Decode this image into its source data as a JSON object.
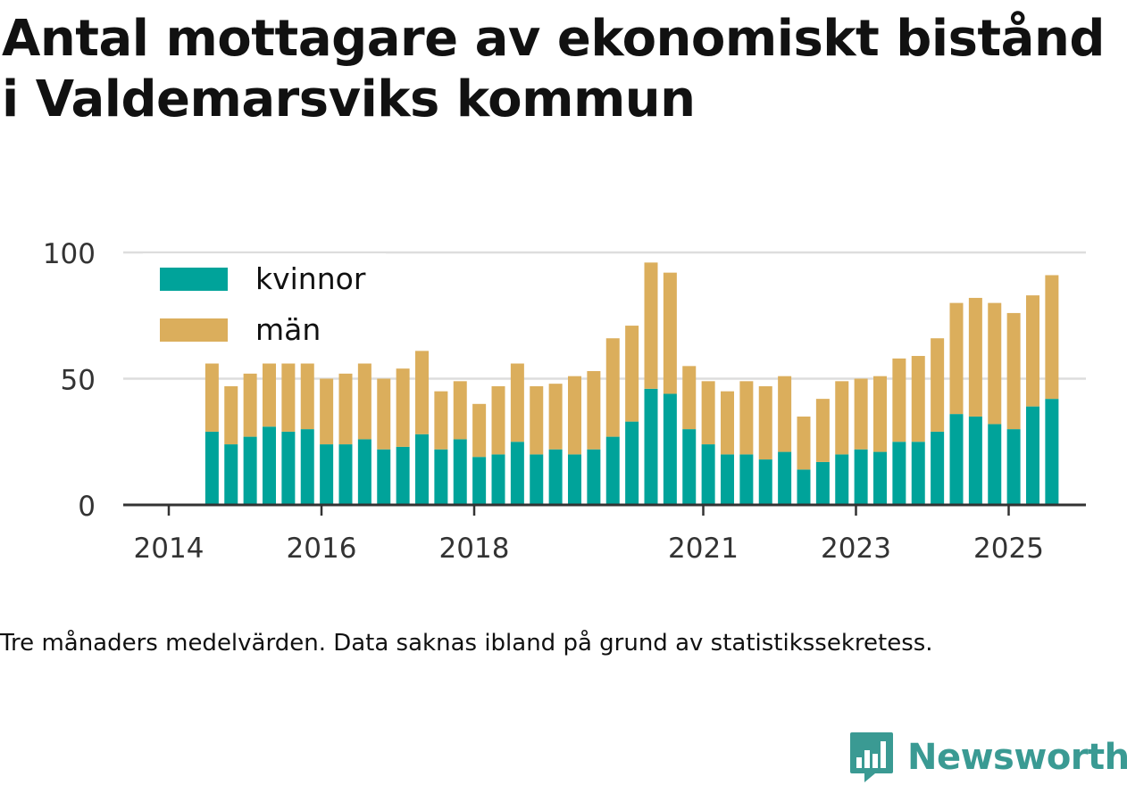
{
  "title": "Antal mottagare av ekonomiskt bistånd i Valdemarsviks kommun",
  "caption": "Tre månaders medelvärden. Data saknas ibland på grund av statistikssekretess.",
  "brand": {
    "name": "Newsworthy",
    "icon": "bar-chart-logo-icon",
    "color": "#3a9a93"
  },
  "chart_data": {
    "type": "bar",
    "stacked": true,
    "title": "",
    "xlabel": "",
    "ylabel": "",
    "ylim": [
      0,
      100
    ],
    "y_ticks": [
      0,
      50,
      100
    ],
    "x_ticks": [
      "2014",
      "2016",
      "2018",
      "2021",
      "2023",
      "2025"
    ],
    "grid": "horizontal",
    "legend_position": "top-left",
    "categories": [
      "2014-04",
      "2014-07",
      "2014-10",
      "2015-01",
      "2015-04",
      "2015-07",
      "2015-10",
      "2016-01",
      "2016-04",
      "2016-07",
      "2016-10",
      "2017-01",
      "2017-04",
      "2017-07",
      "2017-10",
      "2018-01",
      "2018-04",
      "2018-07",
      "2018-10",
      "2019-01",
      "2019-04",
      "2019-07",
      "2019-10",
      "2020-01",
      "2020-04",
      "2020-07",
      "2020-10",
      "2021-01",
      "2021-04",
      "2021-07",
      "2021-10",
      "2022-01",
      "2022-04",
      "2022-07",
      "2022-10",
      "2023-01",
      "2023-04",
      "2023-07",
      "2023-10",
      "2024-01",
      "2024-04",
      "2024-07",
      "2024-10",
      "2025-01",
      "2025-04"
    ],
    "series": [
      {
        "name": "kvinnor",
        "color": "#00a39a",
        "values": [
          29,
          24,
          27,
          31,
          29,
          30,
          24,
          24,
          26,
          22,
          23,
          28,
          22,
          26,
          19,
          20,
          25,
          20,
          22,
          20,
          22,
          27,
          33,
          46,
          44,
          30,
          24,
          20,
          20,
          18,
          21,
          14,
          17,
          20,
          22,
          21,
          25,
          25,
          29,
          36,
          35,
          32,
          30,
          39,
          42
        ]
      },
      {
        "name": "män",
        "color": "#dbae5c",
        "values": [
          27,
          23,
          25,
          25,
          27,
          26,
          26,
          28,
          30,
          28,
          31,
          33,
          23,
          23,
          21,
          27,
          31,
          27,
          26,
          31,
          31,
          39,
          38,
          50,
          48,
          25,
          25,
          25,
          29,
          29,
          30,
          21,
          25,
          29,
          28,
          30,
          33,
          34,
          37,
          44,
          47,
          48,
          46,
          44,
          49
        ]
      }
    ]
  }
}
